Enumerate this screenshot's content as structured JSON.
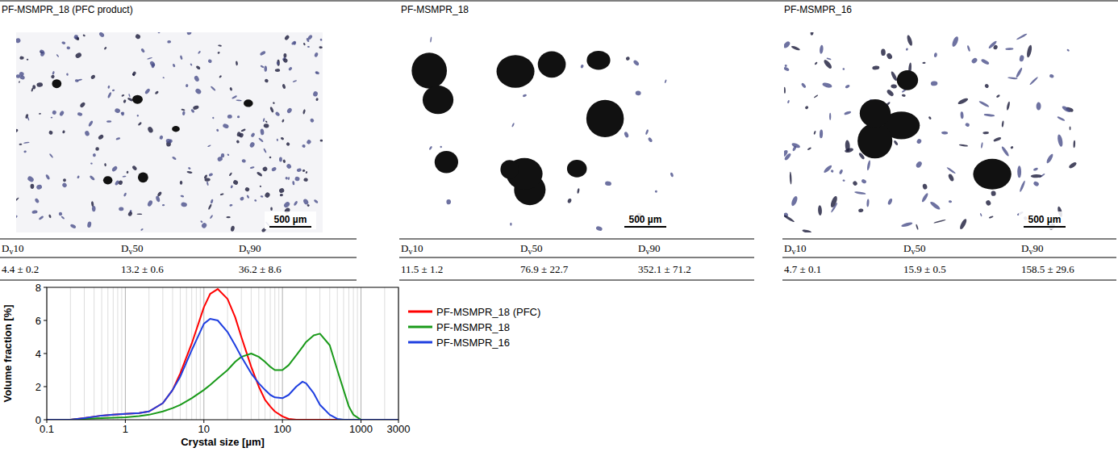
{
  "chart_data": {
    "type": "line",
    "x_label": "Crystal size [µm]",
    "y_label": "Volume fraction [%]",
    "log": "x",
    "grid": true,
    "legend": "right",
    "xlim": [
      0.1,
      3000
    ],
    "xticks": [
      0.1,
      1,
      10,
      100,
      1000,
      3000
    ],
    "ylim": [
      0,
      8
    ],
    "yticks": [
      0,
      2,
      4,
      6,
      8
    ],
    "x": [
      0.1,
      0.2,
      0.3,
      0.5,
      0.7,
      1,
      1.5,
      2,
      3,
      4,
      5,
      7,
      10,
      12,
      15,
      20,
      25,
      30,
      40,
      50,
      60,
      70,
      80,
      100,
      120,
      150,
      180,
      200,
      250,
      300,
      400,
      500,
      600,
      700,
      800,
      1000,
      2000,
      3000
    ],
    "series": [
      {
        "name": "PF-MSMPR_18 (PFC)",
        "color": "#ff0000",
        "values": [
          0,
          0,
          0.1,
          0.25,
          0.3,
          0.35,
          0.4,
          0.5,
          1.0,
          1.8,
          2.8,
          4.6,
          6.8,
          7.6,
          7.9,
          7.3,
          6.2,
          5.0,
          3.2,
          2.0,
          1.2,
          0.8,
          0.5,
          0.2,
          0.05,
          0,
          0,
          0,
          0,
          0,
          0,
          0,
          0,
          0,
          0,
          0,
          0,
          0
        ]
      },
      {
        "name": "PF-MSMPR_18",
        "color": "#1a9a1a",
        "values": [
          0,
          0,
          0.05,
          0.1,
          0.12,
          0.15,
          0.22,
          0.3,
          0.5,
          0.7,
          0.9,
          1.3,
          1.8,
          2.1,
          2.5,
          3.0,
          3.5,
          3.8,
          4.0,
          3.8,
          3.5,
          3.2,
          3.0,
          3.0,
          3.3,
          3.9,
          4.4,
          4.7,
          5.1,
          5.2,
          4.5,
          3.0,
          1.8,
          0.8,
          0.3,
          0,
          0,
          0
        ]
      },
      {
        "name": "PF-MSMPR_16",
        "color": "#1f3fe0",
        "values": [
          0,
          0,
          0.1,
          0.25,
          0.3,
          0.35,
          0.4,
          0.5,
          1.0,
          1.8,
          2.6,
          4.2,
          5.8,
          6.1,
          6.0,
          5.3,
          4.5,
          3.8,
          2.8,
          2.2,
          1.8,
          1.5,
          1.35,
          1.3,
          1.5,
          2.0,
          2.3,
          2.2,
          1.6,
          0.9,
          0.3,
          0.05,
          0,
          0,
          0,
          0,
          0,
          0
        ]
      }
    ]
  },
  "panels": [
    {
      "title": "PF-MSMPR_18 (PFC product)",
      "scale_bar": "500 µm",
      "headers": [
        {
          "symbol": "D",
          "subscript": "v",
          "suffix": "10"
        },
        {
          "symbol": "D",
          "subscript": "v",
          "suffix": "50"
        },
        {
          "symbol": "D",
          "subscript": "v",
          "suffix": "90"
        }
      ],
      "values": [
        "4.4 ± 0.2",
        "13.2 ± 0.6",
        "36.2 ± 8.6"
      ]
    },
    {
      "title": "PF-MSMPR_18",
      "scale_bar": "500 µm",
      "headers": [
        {
          "symbol": "D",
          "subscript": "v",
          "suffix": "10"
        },
        {
          "symbol": "D",
          "subscript": "v",
          "suffix": "50"
        },
        {
          "symbol": "D",
          "subscript": "v",
          "suffix": "90"
        }
      ],
      "values": [
        "11.5 ± 1.2",
        "76.9 ± 22.7",
        "352.1 ± 71.2"
      ]
    },
    {
      "title": "PF-MSMPR_16",
      "scale_bar": "500 µm",
      "headers": [
        {
          "symbol": "D",
          "subscript": "v",
          "suffix": "10"
        },
        {
          "symbol": "D",
          "subscript": "v",
          "suffix": "50"
        },
        {
          "symbol": "D",
          "subscript": "v",
          "suffix": "90"
        }
      ],
      "values": [
        "4.7 ± 0.1",
        "15.9 ± 0.5",
        "158.5 ± 29.6"
      ]
    }
  ]
}
